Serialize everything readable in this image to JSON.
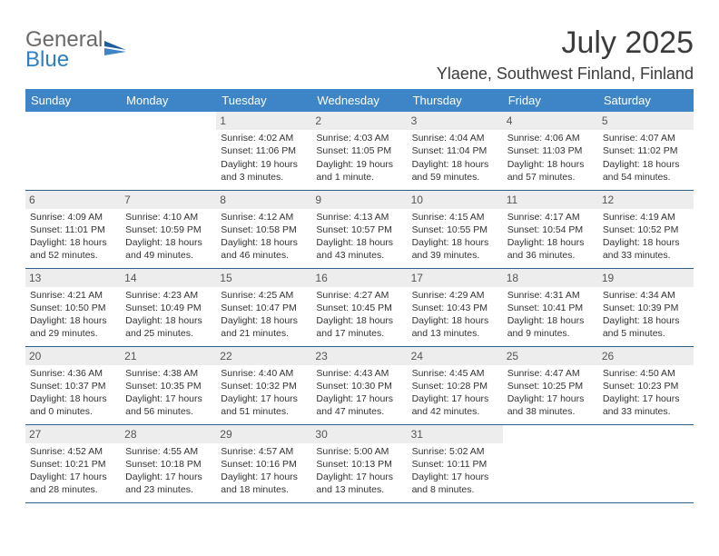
{
  "brand": {
    "line1": "General",
    "line2": "Blue"
  },
  "title": "July 2025",
  "location": "Ylaene, Southwest Finland, Finland",
  "colors": {
    "header_bg": "#3d85c6",
    "header_text": "#ffffff",
    "daynum_bg": "#ededed",
    "cell_border": "#2f5e8a",
    "logo_gray": "#6a6a6a",
    "logo_blue": "#2f7fc1"
  },
  "weekdays": [
    "Sunday",
    "Monday",
    "Tuesday",
    "Wednesday",
    "Thursday",
    "Friday",
    "Saturday"
  ],
  "weeks": [
    [
      {
        "day": "",
        "sunrise": "",
        "sunset": "",
        "daylight": ""
      },
      {
        "day": "",
        "sunrise": "",
        "sunset": "",
        "daylight": ""
      },
      {
        "day": "1",
        "sunrise": "Sunrise: 4:02 AM",
        "sunset": "Sunset: 11:06 PM",
        "daylight": "Daylight: 19 hours and 3 minutes."
      },
      {
        "day": "2",
        "sunrise": "Sunrise: 4:03 AM",
        "sunset": "Sunset: 11:05 PM",
        "daylight": "Daylight: 19 hours and 1 minute."
      },
      {
        "day": "3",
        "sunrise": "Sunrise: 4:04 AM",
        "sunset": "Sunset: 11:04 PM",
        "daylight": "Daylight: 18 hours and 59 minutes."
      },
      {
        "day": "4",
        "sunrise": "Sunrise: 4:06 AM",
        "sunset": "Sunset: 11:03 PM",
        "daylight": "Daylight: 18 hours and 57 minutes."
      },
      {
        "day": "5",
        "sunrise": "Sunrise: 4:07 AM",
        "sunset": "Sunset: 11:02 PM",
        "daylight": "Daylight: 18 hours and 54 minutes."
      }
    ],
    [
      {
        "day": "6",
        "sunrise": "Sunrise: 4:09 AM",
        "sunset": "Sunset: 11:01 PM",
        "daylight": "Daylight: 18 hours and 52 minutes."
      },
      {
        "day": "7",
        "sunrise": "Sunrise: 4:10 AM",
        "sunset": "Sunset: 10:59 PM",
        "daylight": "Daylight: 18 hours and 49 minutes."
      },
      {
        "day": "8",
        "sunrise": "Sunrise: 4:12 AM",
        "sunset": "Sunset: 10:58 PM",
        "daylight": "Daylight: 18 hours and 46 minutes."
      },
      {
        "day": "9",
        "sunrise": "Sunrise: 4:13 AM",
        "sunset": "Sunset: 10:57 PM",
        "daylight": "Daylight: 18 hours and 43 minutes."
      },
      {
        "day": "10",
        "sunrise": "Sunrise: 4:15 AM",
        "sunset": "Sunset: 10:55 PM",
        "daylight": "Daylight: 18 hours and 39 minutes."
      },
      {
        "day": "11",
        "sunrise": "Sunrise: 4:17 AM",
        "sunset": "Sunset: 10:54 PM",
        "daylight": "Daylight: 18 hours and 36 minutes."
      },
      {
        "day": "12",
        "sunrise": "Sunrise: 4:19 AM",
        "sunset": "Sunset: 10:52 PM",
        "daylight": "Daylight: 18 hours and 33 minutes."
      }
    ],
    [
      {
        "day": "13",
        "sunrise": "Sunrise: 4:21 AM",
        "sunset": "Sunset: 10:50 PM",
        "daylight": "Daylight: 18 hours and 29 minutes."
      },
      {
        "day": "14",
        "sunrise": "Sunrise: 4:23 AM",
        "sunset": "Sunset: 10:49 PM",
        "daylight": "Daylight: 18 hours and 25 minutes."
      },
      {
        "day": "15",
        "sunrise": "Sunrise: 4:25 AM",
        "sunset": "Sunset: 10:47 PM",
        "daylight": "Daylight: 18 hours and 21 minutes."
      },
      {
        "day": "16",
        "sunrise": "Sunrise: 4:27 AM",
        "sunset": "Sunset: 10:45 PM",
        "daylight": "Daylight: 18 hours and 17 minutes."
      },
      {
        "day": "17",
        "sunrise": "Sunrise: 4:29 AM",
        "sunset": "Sunset: 10:43 PM",
        "daylight": "Daylight: 18 hours and 13 minutes."
      },
      {
        "day": "18",
        "sunrise": "Sunrise: 4:31 AM",
        "sunset": "Sunset: 10:41 PM",
        "daylight": "Daylight: 18 hours and 9 minutes."
      },
      {
        "day": "19",
        "sunrise": "Sunrise: 4:34 AM",
        "sunset": "Sunset: 10:39 PM",
        "daylight": "Daylight: 18 hours and 5 minutes."
      }
    ],
    [
      {
        "day": "20",
        "sunrise": "Sunrise: 4:36 AM",
        "sunset": "Sunset: 10:37 PM",
        "daylight": "Daylight: 18 hours and 0 minutes."
      },
      {
        "day": "21",
        "sunrise": "Sunrise: 4:38 AM",
        "sunset": "Sunset: 10:35 PM",
        "daylight": "Daylight: 17 hours and 56 minutes."
      },
      {
        "day": "22",
        "sunrise": "Sunrise: 4:40 AM",
        "sunset": "Sunset: 10:32 PM",
        "daylight": "Daylight: 17 hours and 51 minutes."
      },
      {
        "day": "23",
        "sunrise": "Sunrise: 4:43 AM",
        "sunset": "Sunset: 10:30 PM",
        "daylight": "Daylight: 17 hours and 47 minutes."
      },
      {
        "day": "24",
        "sunrise": "Sunrise: 4:45 AM",
        "sunset": "Sunset: 10:28 PM",
        "daylight": "Daylight: 17 hours and 42 minutes."
      },
      {
        "day": "25",
        "sunrise": "Sunrise: 4:47 AM",
        "sunset": "Sunset: 10:25 PM",
        "daylight": "Daylight: 17 hours and 38 minutes."
      },
      {
        "day": "26",
        "sunrise": "Sunrise: 4:50 AM",
        "sunset": "Sunset: 10:23 PM",
        "daylight": "Daylight: 17 hours and 33 minutes."
      }
    ],
    [
      {
        "day": "27",
        "sunrise": "Sunrise: 4:52 AM",
        "sunset": "Sunset: 10:21 PM",
        "daylight": "Daylight: 17 hours and 28 minutes."
      },
      {
        "day": "28",
        "sunrise": "Sunrise: 4:55 AM",
        "sunset": "Sunset: 10:18 PM",
        "daylight": "Daylight: 17 hours and 23 minutes."
      },
      {
        "day": "29",
        "sunrise": "Sunrise: 4:57 AM",
        "sunset": "Sunset: 10:16 PM",
        "daylight": "Daylight: 17 hours and 18 minutes."
      },
      {
        "day": "30",
        "sunrise": "Sunrise: 5:00 AM",
        "sunset": "Sunset: 10:13 PM",
        "daylight": "Daylight: 17 hours and 13 minutes."
      },
      {
        "day": "31",
        "sunrise": "Sunrise: 5:02 AM",
        "sunset": "Sunset: 10:11 PM",
        "daylight": "Daylight: 17 hours and 8 minutes."
      },
      {
        "day": "",
        "sunrise": "",
        "sunset": "",
        "daylight": ""
      },
      {
        "day": "",
        "sunrise": "",
        "sunset": "",
        "daylight": ""
      }
    ]
  ]
}
